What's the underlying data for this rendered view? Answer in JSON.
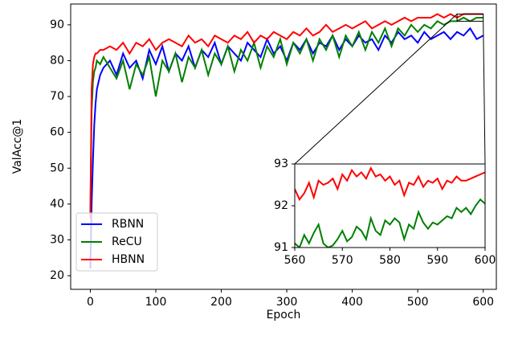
{
  "chart_data": [
    {
      "type": "line",
      "xlabel": "Epoch",
      "ylabel": "ValAcc@1",
      "x": [
        0,
        2,
        4,
        6,
        8,
        10,
        15,
        20,
        30,
        40,
        50,
        60,
        70,
        80,
        90,
        100,
        110,
        120,
        130,
        140,
        150,
        160,
        170,
        180,
        190,
        200,
        210,
        220,
        230,
        240,
        250,
        260,
        270,
        280,
        290,
        300,
        310,
        320,
        330,
        340,
        350,
        360,
        370,
        380,
        390,
        400,
        410,
        420,
        430,
        440,
        450,
        460,
        470,
        480,
        490,
        500,
        510,
        520,
        530,
        540,
        550,
        560,
        570,
        580,
        590,
        600
      ],
      "series": [
        {
          "name": "RBNN",
          "color": "#0000ff",
          "values": [
            22,
            40,
            52,
            62,
            68,
            72,
            76,
            78,
            80,
            76,
            82,
            78,
            80,
            75,
            83,
            79,
            84,
            77,
            82,
            80,
            84,
            78,
            83,
            81,
            85,
            79,
            84,
            82,
            80,
            85,
            83,
            81,
            86,
            82,
            84,
            80,
            85,
            83,
            86,
            82,
            85,
            84,
            87,
            83,
            86,
            84,
            87,
            85,
            86,
            83,
            87,
            85,
            88,
            86,
            87,
            85,
            88,
            86,
            87,
            88,
            86,
            88,
            87,
            89,
            86,
            87
          ]
        },
        {
          "name": "ReCU",
          "color": "#008000",
          "values": [
            37,
            66,
            74,
            77,
            78,
            80,
            79,
            81,
            78,
            75,
            80,
            72,
            79,
            76,
            81,
            70,
            80,
            77,
            82,
            74,
            81,
            78,
            83,
            76,
            82,
            79,
            84,
            77,
            83,
            80,
            85,
            78,
            84,
            81,
            86,
            79,
            85,
            82,
            86,
            80,
            86,
            83,
            87,
            81,
            87,
            84,
            88,
            83,
            88,
            85,
            89,
            84,
            89,
            87,
            90,
            88,
            90,
            89,
            91,
            90,
            91,
            91,
            92,
            91,
            92,
            92
          ]
        },
        {
          "name": "HBNN",
          "color": "#ff0000",
          "values": [
            36,
            72,
            79,
            81,
            82,
            82,
            83,
            83,
            84,
            83,
            85,
            82,
            85,
            84,
            86,
            83,
            85,
            86,
            85,
            84,
            87,
            85,
            86,
            84,
            87,
            86,
            85,
            87,
            86,
            88,
            85,
            87,
            86,
            88,
            87,
            86,
            88,
            87,
            89,
            87,
            88,
            90,
            88,
            89,
            90,
            89,
            90,
            91,
            89,
            90,
            91,
            90,
            91,
            92,
            91,
            92,
            92,
            92,
            93,
            92,
            93,
            92,
            93,
            93,
            93,
            93
          ]
        }
      ],
      "xlim": [
        -30,
        620
      ],
      "ylim": [
        16.2,
        95.8
      ],
      "xticks": [
        0,
        100,
        200,
        300,
        400,
        500,
        600
      ],
      "yticks": [
        20,
        30,
        40,
        50,
        60,
        70,
        80,
        90
      ],
      "legend": "lower left"
    },
    {
      "type": "line",
      "x": [
        560,
        561,
        562,
        563,
        564,
        565,
        566,
        567,
        568,
        569,
        570,
        571,
        572,
        573,
        574,
        575,
        576,
        577,
        578,
        579,
        580,
        581,
        582,
        583,
        584,
        585,
        586,
        587,
        588,
        589,
        590,
        591,
        592,
        593,
        594,
        595,
        596,
        597,
        598,
        599,
        600
      ],
      "series": [
        {
          "name": "ReCU",
          "color": "#008000",
          "values": [
            91.1,
            91.0,
            91.3,
            91.1,
            91.35,
            91.55,
            91.1,
            91.0,
            91.05,
            91.2,
            91.4,
            91.15,
            91.25,
            91.5,
            91.4,
            91.2,
            91.7,
            91.4,
            91.3,
            91.65,
            91.55,
            91.7,
            91.6,
            91.2,
            91.55,
            91.45,
            91.85,
            91.6,
            91.45,
            91.6,
            91.55,
            91.65,
            91.75,
            91.7,
            91.95,
            91.85,
            91.95,
            91.8,
            92.0,
            92.15,
            92.05
          ]
        },
        {
          "name": "HBNN",
          "color": "#ff0000",
          "values": [
            92.4,
            92.15,
            92.3,
            92.55,
            92.2,
            92.6,
            92.5,
            92.55,
            92.65,
            92.4,
            92.75,
            92.6,
            92.85,
            92.7,
            92.8,
            92.65,
            92.9,
            92.7,
            92.75,
            92.6,
            92.7,
            92.5,
            92.6,
            92.25,
            92.55,
            92.5,
            92.7,
            92.45,
            92.6,
            92.55,
            92.65,
            92.4,
            92.6,
            92.55,
            92.7,
            92.6,
            92.6,
            92.65,
            92.7,
            92.75,
            92.8
          ]
        }
      ],
      "xlim": [
        560,
        600
      ],
      "ylim": [
        91,
        93
      ],
      "xticks": [
        560,
        570,
        580,
        590,
        600
      ],
      "yticks": [
        91,
        92,
        93
      ]
    }
  ]
}
